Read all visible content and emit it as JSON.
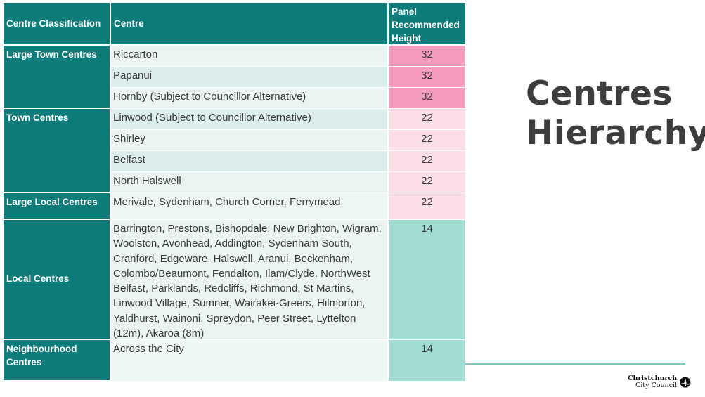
{
  "headers": {
    "classification": "Centre Classification",
    "centre": "Centre",
    "height_line1": "Panel",
    "height_line2": "Recommended",
    "height_line3": "Height"
  },
  "rows": [
    {
      "classification": "Large Town Centres",
      "centre": "Riccarton",
      "height": "32"
    },
    {
      "classification": "",
      "centre": "Papanui",
      "height": "32"
    },
    {
      "classification": "",
      "centre": "Hornby (Subject to Councillor Alternative)",
      "height": "32"
    },
    {
      "classification": "Town Centres",
      "centre": "Linwood (Subject to Councillor Alternative)",
      "height": "22"
    },
    {
      "classification": "",
      "centre": "Shirley",
      "height": "22"
    },
    {
      "classification": "",
      "centre": "Belfast",
      "height": "22"
    },
    {
      "classification": "",
      "centre": "North Halswell",
      "height": "22"
    },
    {
      "classification": "Large Local Centres",
      "centre": "Merivale, Sydenham, Church Corner, Ferrymead",
      "height": "22"
    },
    {
      "classification": "Local Centres",
      "centre": "Barrington, Prestons, Bishopdale, New Brighton, Wigram, Woolston, Avonhead, Addington, Sydenham South, Cranford, Edgeware, Halswell, Aranui, Beckenham, Colombo/Beaumont, Fendalton, Ilam/Clyde. NorthWest Belfast, Parklands, Redcliffs, Richmond, St Martins, Linwood Village, Sumner, Wairakei-Greers, Hilmorton, Yaldhurst, Wainoni, Spreydon, Peer Street, Lyttelton (12m), Akaroa (8m)",
      "height": "14"
    },
    {
      "classification": "Neighbourhood Centres",
      "centre": "Across the City",
      "height": "14"
    }
  ],
  "title": {
    "line1": "Centres",
    "line2": "Hierarchy"
  },
  "logo": {
    "line1": "Christchurch",
    "line2": "City Council",
    "icon": "cathedral-spire-icon"
  },
  "colors": {
    "header_teal": "#0e7c7b",
    "height_32": "#f59bbd",
    "height_22": "#fcdfe6",
    "height_14": "#a3dcd3"
  }
}
